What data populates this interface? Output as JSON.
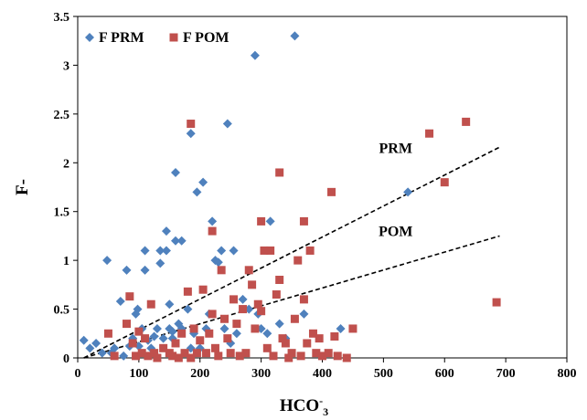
{
  "chart_data": {
    "type": "scatter",
    "xlabel_base": "HCO",
    "xlabel_sup": "-",
    "xlabel_sub": "3",
    "ylabel": "F-",
    "xlim": [
      0,
      800
    ],
    "ylim": [
      0,
      3.5
    ],
    "x_ticks": [
      0,
      100,
      200,
      300,
      400,
      500,
      600,
      700,
      800
    ],
    "y_ticks": [
      0,
      0.5,
      1,
      1.5,
      2,
      2.5,
      3,
      3.5
    ],
    "y_tick_labels": [
      "0",
      "0.5",
      "1",
      "1.5",
      "2",
      "2.5",
      "3",
      "3.5"
    ],
    "grid": false,
    "legend_position": "top-left",
    "series": [
      {
        "name": "F PRM",
        "marker": "diamond",
        "color": "#4F81BD",
        "points": [
          [
            10,
            0.18
          ],
          [
            20,
            0.1
          ],
          [
            30,
            0.15
          ],
          [
            40,
            0.05
          ],
          [
            48,
            1.0
          ],
          [
            55,
            0.05
          ],
          [
            60,
            0.1
          ],
          [
            70,
            0.58
          ],
          [
            75,
            0.02
          ],
          [
            80,
            0.9
          ],
          [
            85,
            0.12
          ],
          [
            90,
            0.2
          ],
          [
            95,
            0.45
          ],
          [
            98,
            0.5
          ],
          [
            100,
            0.12
          ],
          [
            105,
            0.3
          ],
          [
            110,
            0.9
          ],
          [
            110,
            1.1
          ],
          [
            115,
            0.18
          ],
          [
            120,
            0.1
          ],
          [
            125,
            0.22
          ],
          [
            130,
            0.3
          ],
          [
            135,
            0.97
          ],
          [
            135,
            1.1
          ],
          [
            140,
            0.2
          ],
          [
            145,
            1.1
          ],
          [
            145,
            1.3
          ],
          [
            150,
            0.55
          ],
          [
            150,
            0.3
          ],
          [
            155,
            0.27
          ],
          [
            155,
            0.2
          ],
          [
            160,
            1.9
          ],
          [
            160,
            1.2
          ],
          [
            165,
            0.35
          ],
          [
            170,
            1.2
          ],
          [
            170,
            0.3
          ],
          [
            180,
            0.5
          ],
          [
            185,
            2.3
          ],
          [
            185,
            0.1
          ],
          [
            190,
            0.25
          ],
          [
            195,
            1.7
          ],
          [
            200,
            0.1
          ],
          [
            205,
            1.8
          ],
          [
            210,
            0.3
          ],
          [
            215,
            0.45
          ],
          [
            220,
            1.4
          ],
          [
            225,
            1.0
          ],
          [
            230,
            0.98
          ],
          [
            235,
            1.1
          ],
          [
            240,
            0.3
          ],
          [
            245,
            2.4
          ],
          [
            250,
            0.15
          ],
          [
            255,
            1.1
          ],
          [
            260,
            0.25
          ],
          [
            270,
            0.6
          ],
          [
            280,
            0.5
          ],
          [
            290,
            3.1
          ],
          [
            295,
            0.45
          ],
          [
            300,
            0.3
          ],
          [
            310,
            0.25
          ],
          [
            315,
            1.4
          ],
          [
            330,
            0.35
          ],
          [
            340,
            0.2
          ],
          [
            355,
            3.3
          ],
          [
            370,
            0.45
          ],
          [
            430,
            0.3
          ],
          [
            540,
            1.7
          ]
        ]
      },
      {
        "name": "F POM",
        "marker": "square",
        "color": "#C0504D",
        "points": [
          [
            50,
            0.25
          ],
          [
            60,
            0.02
          ],
          [
            80,
            0.35
          ],
          [
            85,
            0.63
          ],
          [
            90,
            0.15
          ],
          [
            95,
            0.02
          ],
          [
            100,
            0.27
          ],
          [
            105,
            0.05
          ],
          [
            110,
            0.2
          ],
          [
            115,
            0.02
          ],
          [
            120,
            0.55
          ],
          [
            125,
            0.05
          ],
          [
            130,
            0.0
          ],
          [
            140,
            0.1
          ],
          [
            150,
            0.05
          ],
          [
            155,
            0.02
          ],
          [
            160,
            0.15
          ],
          [
            165,
            0.0
          ],
          [
            170,
            0.25
          ],
          [
            175,
            0.05
          ],
          [
            180,
            0.68
          ],
          [
            185,
            2.4
          ],
          [
            185,
            0.0
          ],
          [
            190,
            0.3
          ],
          [
            195,
            0.05
          ],
          [
            200,
            0.18
          ],
          [
            205,
            0.7
          ],
          [
            210,
            0.05
          ],
          [
            215,
            0.25
          ],
          [
            220,
            1.3
          ],
          [
            220,
            0.45
          ],
          [
            225,
            0.1
          ],
          [
            230,
            0.02
          ],
          [
            235,
            0.9
          ],
          [
            240,
            0.4
          ],
          [
            245,
            0.2
          ],
          [
            250,
            0.05
          ],
          [
            255,
            0.6
          ],
          [
            260,
            0.35
          ],
          [
            265,
            0.02
          ],
          [
            270,
            0.5
          ],
          [
            275,
            0.05
          ],
          [
            280,
            0.9
          ],
          [
            285,
            0.75
          ],
          [
            290,
            0.3
          ],
          [
            295,
            0.55
          ],
          [
            300,
            1.4
          ],
          [
            300,
            0.48
          ],
          [
            305,
            1.1
          ],
          [
            310,
            0.1
          ],
          [
            315,
            1.1
          ],
          [
            320,
            0.02
          ],
          [
            325,
            0.65
          ],
          [
            330,
            1.9
          ],
          [
            330,
            0.8
          ],
          [
            335,
            0.2
          ],
          [
            340,
            0.15
          ],
          [
            345,
            0.0
          ],
          [
            350,
            0.05
          ],
          [
            355,
            0.4
          ],
          [
            360,
            1.0
          ],
          [
            365,
            0.02
          ],
          [
            370,
            1.4
          ],
          [
            370,
            0.6
          ],
          [
            375,
            0.15
          ],
          [
            380,
            1.1
          ],
          [
            385,
            0.25
          ],
          [
            390,
            0.05
          ],
          [
            395,
            0.2
          ],
          [
            400,
            0.02
          ],
          [
            410,
            0.05
          ],
          [
            415,
            1.7
          ],
          [
            420,
            0.22
          ],
          [
            425,
            0.02
          ],
          [
            440,
            0.0
          ],
          [
            450,
            0.3
          ],
          [
            575,
            2.3
          ],
          [
            600,
            1.8
          ],
          [
            635,
            2.42
          ],
          [
            685,
            0.57
          ]
        ]
      }
    ],
    "trendlines": [
      {
        "label": "PRM",
        "x": [
          10,
          690
        ],
        "y": [
          0.0,
          2.16
        ]
      },
      {
        "label": "POM",
        "x": [
          10,
          690
        ],
        "y": [
          0.0,
          1.25
        ]
      }
    ],
    "annotations": [
      {
        "text": "PRM",
        "x": 520,
        "y": 2.1
      },
      {
        "text": "POM",
        "x": 520,
        "y": 1.25
      }
    ]
  }
}
